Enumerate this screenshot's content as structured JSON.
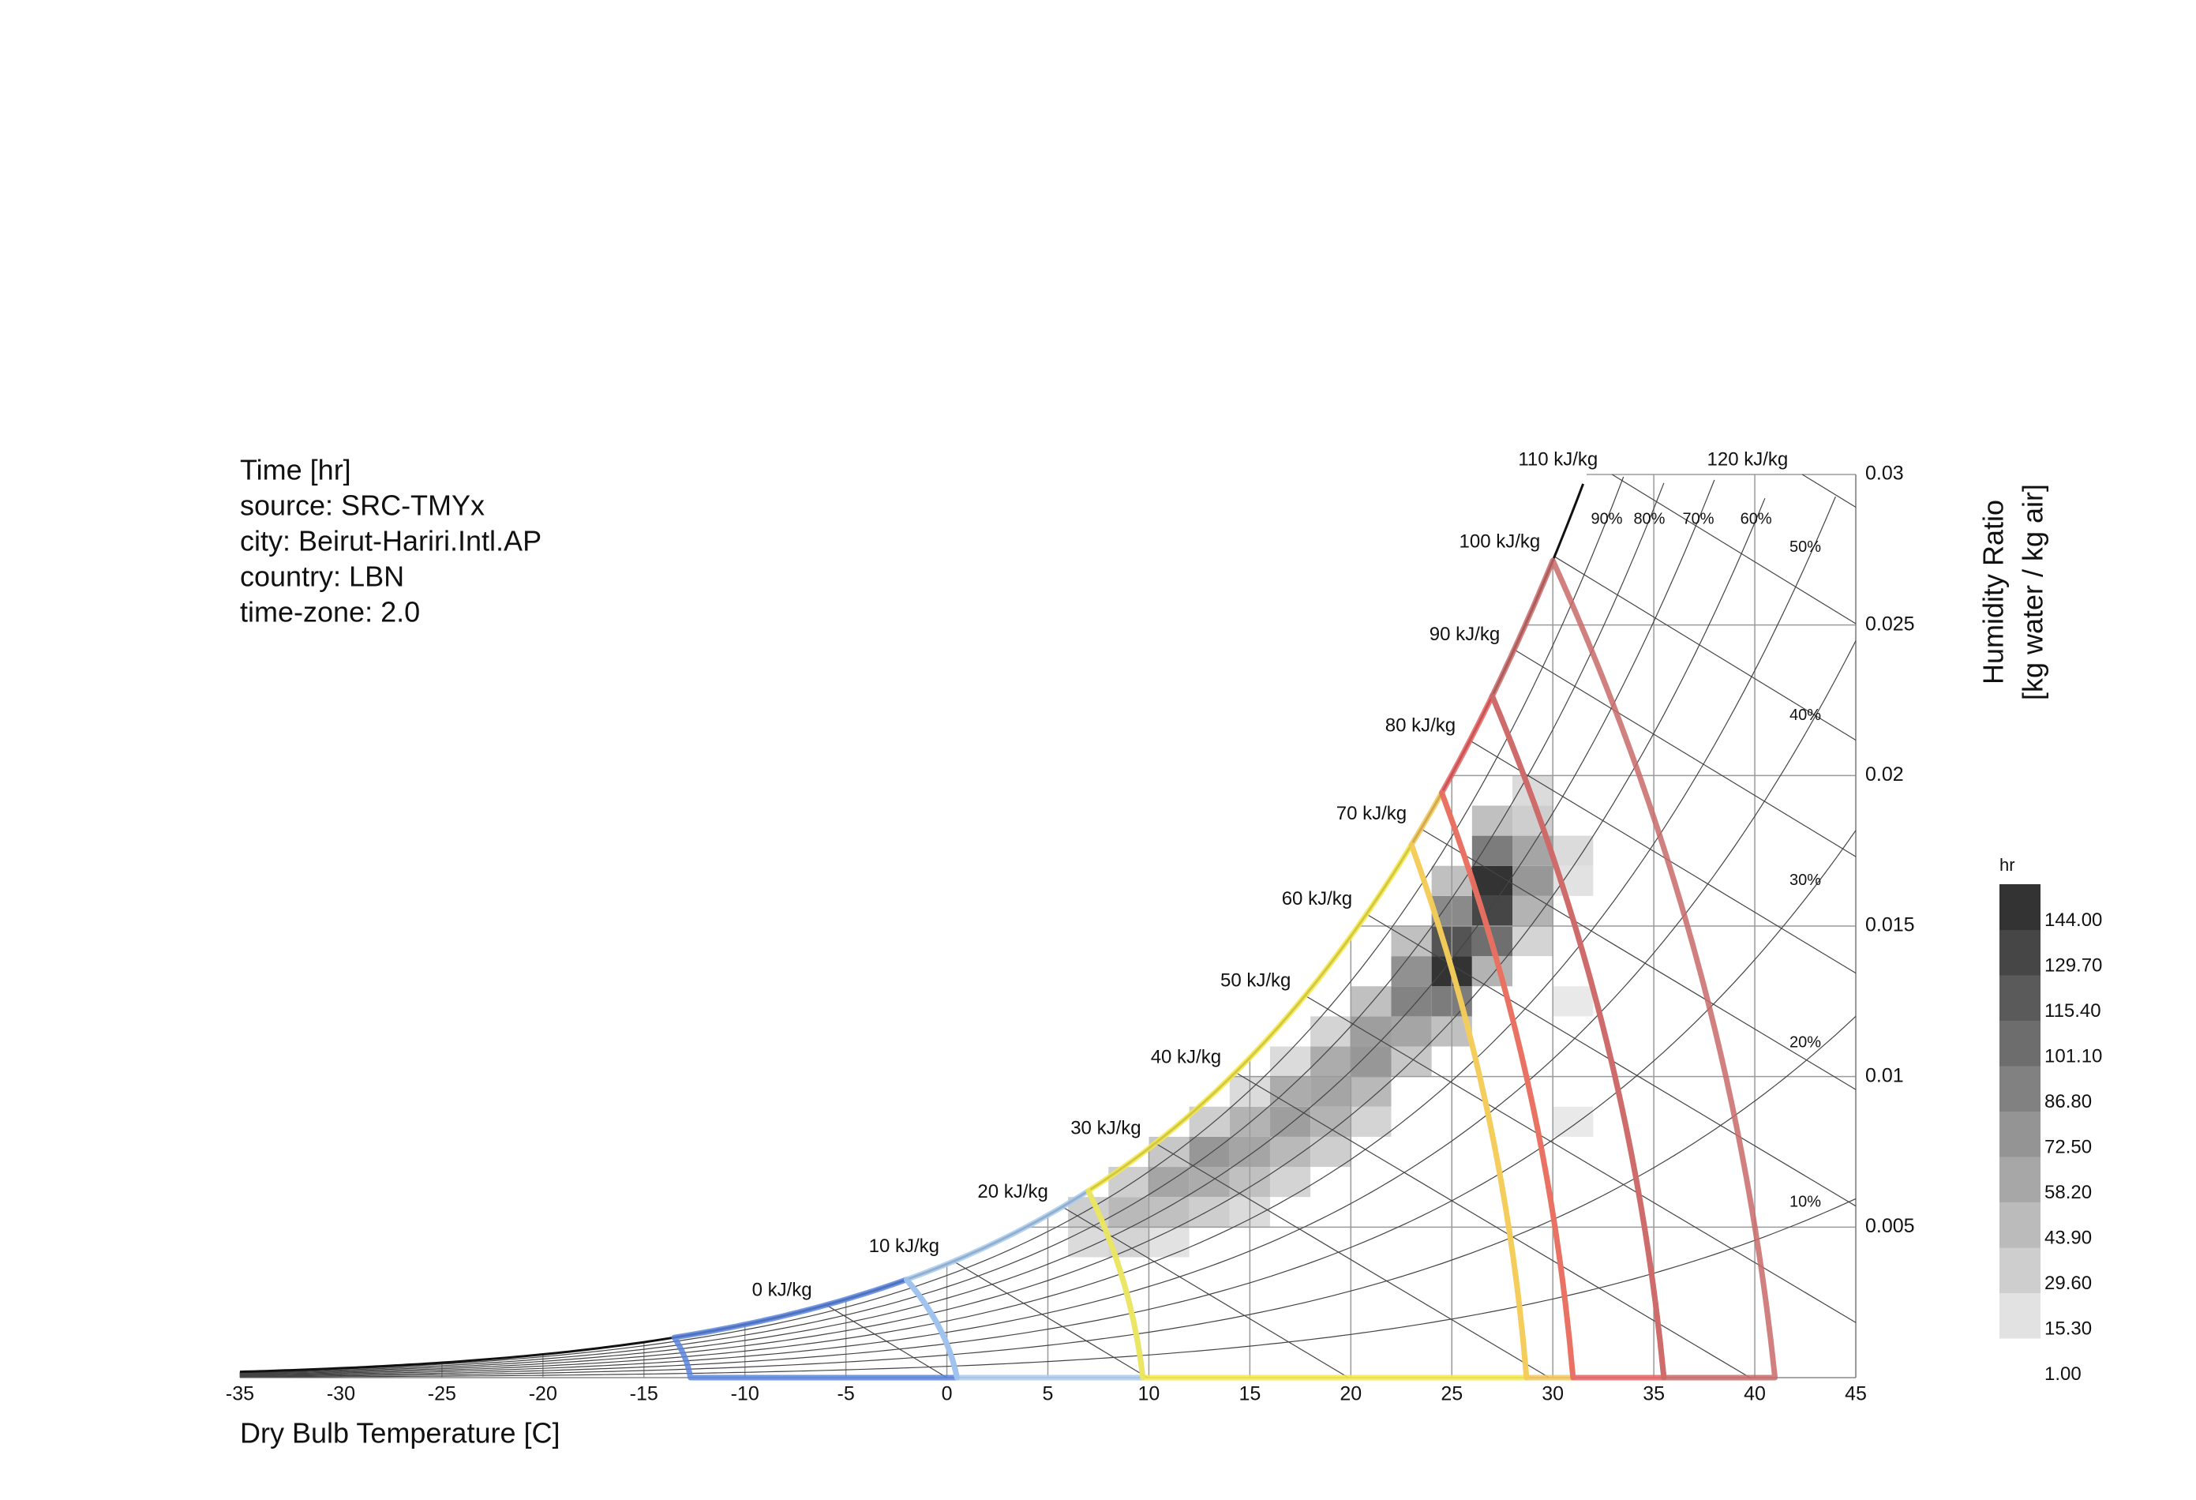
{
  "chart_data": {
    "type": "psychrometric",
    "info": [
      "Time [hr]",
      "source: SRC-TMYx",
      "city: Beirut-Hariri.Intl.AP",
      "country: LBN",
      "time-zone: 2.0"
    ],
    "x_label": "Dry Bulb Temperature [C]",
    "y_label": [
      "Humidity Ratio",
      "[kg water / kg air]"
    ],
    "xlim": [
      -35,
      45
    ],
    "xticks": [
      -35,
      -30,
      -25,
      -20,
      -15,
      -10,
      -5,
      0,
      5,
      10,
      15,
      20,
      25,
      30,
      35,
      40,
      45
    ],
    "ylim": [
      0,
      0.03
    ],
    "yticks": [
      0.005,
      0.01,
      0.015,
      0.02,
      0.025,
      0.03
    ],
    "enthalpy": [
      {
        "value": 0,
        "label": "0 kJ/kg"
      },
      {
        "value": 10,
        "label": "10 kJ/kg"
      },
      {
        "value": 20,
        "label": "20 kJ/kg"
      },
      {
        "value": 30,
        "label": "30 kJ/kg"
      },
      {
        "value": 40,
        "label": "40 kJ/kg"
      },
      {
        "value": 50,
        "label": "50 kJ/kg"
      },
      {
        "value": 60,
        "label": "60 kJ/kg"
      },
      {
        "value": 70,
        "label": "70 kJ/kg"
      },
      {
        "value": 80,
        "label": "80 kJ/kg"
      },
      {
        "value": 90,
        "label": "90 kJ/kg"
      },
      {
        "value": 100,
        "label": "100 kJ/kg"
      },
      {
        "value": 110,
        "label": "110 kJ/kg"
      },
      {
        "value": 120,
        "label": "120 kJ/kg"
      }
    ],
    "rh": [
      {
        "value": 10,
        "label": "10%"
      },
      {
        "value": 20,
        "label": "20%"
      },
      {
        "value": 30,
        "label": "30%"
      },
      {
        "value": 40,
        "label": "40%"
      },
      {
        "value": 50,
        "label": "50%"
      },
      {
        "value": 60,
        "label": "60%"
      },
      {
        "value": 70,
        "label": "70%"
      },
      {
        "value": 80,
        "label": "80%"
      },
      {
        "value": 90,
        "label": "90%"
      }
    ],
    "cell_size": [
      2,
      0.001
    ],
    "cells": [
      [
        6,
        0.004,
        20
      ],
      [
        6,
        0.005,
        30
      ],
      [
        8,
        0.004,
        25
      ],
      [
        8,
        0.005,
        45
      ],
      [
        8,
        0.006,
        30
      ],
      [
        10,
        0.004,
        15
      ],
      [
        10,
        0.005,
        40
      ],
      [
        10,
        0.006,
        60
      ],
      [
        10,
        0.007,
        35
      ],
      [
        12,
        0.005,
        30
      ],
      [
        12,
        0.006,
        55
      ],
      [
        12,
        0.007,
        70
      ],
      [
        12,
        0.008,
        30
      ],
      [
        14,
        0.005,
        20
      ],
      [
        14,
        0.006,
        40
      ],
      [
        14,
        0.007,
        60
      ],
      [
        14,
        0.008,
        50
      ],
      [
        14,
        0.009,
        20
      ],
      [
        16,
        0.006,
        25
      ],
      [
        16,
        0.007,
        45
      ],
      [
        16,
        0.008,
        65
      ],
      [
        16,
        0.009,
        55
      ],
      [
        16,
        0.01,
        20
      ],
      [
        18,
        0.007,
        30
      ],
      [
        18,
        0.008,
        50
      ],
      [
        18,
        0.009,
        60
      ],
      [
        18,
        0.01,
        55
      ],
      [
        18,
        0.011,
        25
      ],
      [
        20,
        0.008,
        25
      ],
      [
        20,
        0.009,
        45
      ],
      [
        20,
        0.01,
        70
      ],
      [
        20,
        0.011,
        65
      ],
      [
        20,
        0.012,
        40
      ],
      [
        22,
        0.01,
        35
      ],
      [
        22,
        0.011,
        60
      ],
      [
        22,
        0.012,
        85
      ],
      [
        22,
        0.013,
        75
      ],
      [
        22,
        0.014,
        40
      ],
      [
        24,
        0.011,
        40
      ],
      [
        24,
        0.012,
        90
      ],
      [
        24,
        0.013,
        144
      ],
      [
        24,
        0.014,
        120
      ],
      [
        24,
        0.015,
        80
      ],
      [
        24,
        0.016,
        40
      ],
      [
        26,
        0.013,
        50
      ],
      [
        26,
        0.014,
        100
      ],
      [
        26,
        0.015,
        130
      ],
      [
        26,
        0.016,
        144
      ],
      [
        26,
        0.017,
        90
      ],
      [
        26,
        0.018,
        40
      ],
      [
        28,
        0.014,
        25
      ],
      [
        28,
        0.015,
        50
      ],
      [
        28,
        0.016,
        70
      ],
      [
        28,
        0.017,
        60
      ],
      [
        28,
        0.018,
        30
      ],
      [
        28,
        0.019,
        20
      ],
      [
        30,
        0.008,
        10
      ],
      [
        30,
        0.012,
        10
      ],
      [
        30,
        0.016,
        15
      ],
      [
        30,
        0.017,
        20
      ]
    ],
    "zones": [
      {
        "color": "#5a84de",
        "from": [
          -13.5,
          -12.7
        ],
        "to": [
          -2,
          0.5
        ]
      },
      {
        "color": "#a9ccf0",
        "from": [
          -2,
          0.5
        ],
        "to": [
          7,
          9.7
        ]
      },
      {
        "color": "#f5e94a",
        "from": [
          7,
          9.7
        ],
        "to": [
          23,
          28.7
        ]
      },
      {
        "color": "#f3c85a",
        "from": [
          23,
          28.7
        ],
        "to": [
          24.5,
          31
        ]
      },
      {
        "color": "#e86262",
        "from": [
          24.5,
          31
        ],
        "to": [
          27,
          35.5
        ]
      },
      {
        "color": "#c96a6a",
        "from": [
          27,
          35.5
        ],
        "to": [
          30,
          41
        ]
      }
    ],
    "legend": {
      "title": "hr",
      "ticks": [
        {
          "value": 1,
          "label": "1.00"
        },
        {
          "value": 15.3,
          "label": "15.30"
        },
        {
          "value": 29.6,
          "label": "29.60"
        },
        {
          "value": 43.9,
          "label": "43.90"
        },
        {
          "value": 58.2,
          "label": "58.20"
        },
        {
          "value": 72.5,
          "label": "72.50"
        },
        {
          "value": 86.8,
          "label": "86.80"
        },
        {
          "value": 101.1,
          "label": "101.10"
        },
        {
          "value": 115.4,
          "label": "115.40"
        },
        {
          "value": 129.7,
          "label": "129.70"
        },
        {
          "value": 144,
          "label": "144.00"
        }
      ]
    }
  }
}
